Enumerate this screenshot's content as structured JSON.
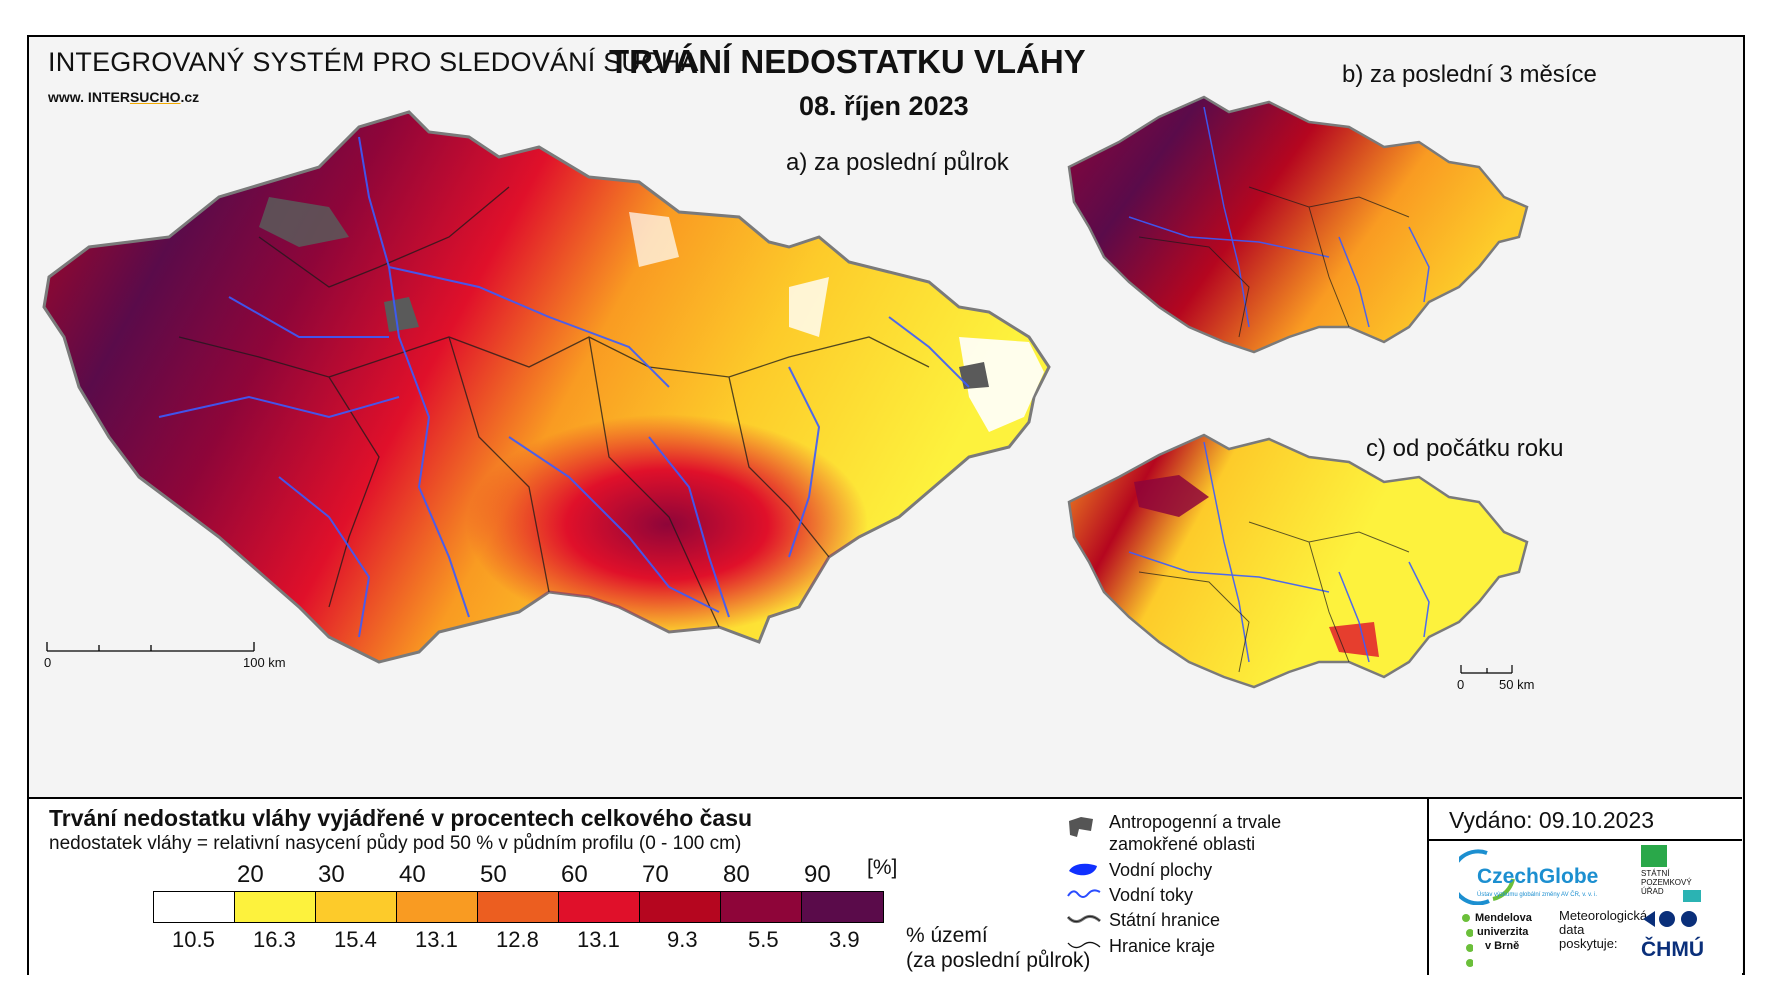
{
  "header": {
    "system_title": "INTEGROVANÝ SYSTÉM PRO SLEDOVÁNÍ SUCHA",
    "website_prefix": "www. INTER",
    "website_brand": "SUCHO",
    "website_suffix": ".cz",
    "title": "TRVÁNÍ NEDOSTATKU VLÁHY",
    "date": "08. říjen 2023"
  },
  "maps": {
    "a_label": "a) za poslední půlrok",
    "b_label": "b) za poslední 3 měsíce",
    "c_label": "c) od počátku roku"
  },
  "scale_main": {
    "start": "0",
    "end": "100 km"
  },
  "scale_small": {
    "start": "0",
    "end": "50 km"
  },
  "legend": {
    "title": "Trvání nedostatku vláhy vyjádřené v procentech celkového času",
    "subtitle": "nedostatek vláhy = relativní nasycení půdy pod 50 % v půdním profilu (0 - 100 cm)",
    "unit": "[%]",
    "thresholds": [
      "20",
      "30",
      "40",
      "50",
      "60",
      "70",
      "80",
      "90"
    ],
    "colors": [
      "#ffffff",
      "#fdf23d",
      "#fdcb2a",
      "#f99b22",
      "#ec5e20",
      "#e0102a",
      "#b5061f",
      "#8e0539",
      "#5a0b4a"
    ],
    "area_percentages": [
      "10.5",
      "16.3",
      "15.4",
      "13.1",
      "12.8",
      "13.1",
      "9.3",
      "5.5",
      "3.9"
    ],
    "area_label_line1": "% území",
    "area_label_line2": "(za poslední půlrok)"
  },
  "symbols": {
    "anthropogenic": "Antropogenní a trvale zamokřené oblasti",
    "anthropogenic_line1": "Antropogenní a trvale",
    "anthropogenic_line2": "zamokřené oblasti",
    "water_bodies": "Vodní plochy",
    "rivers": "Vodní toky",
    "state_border": "Státní hranice",
    "region_border": "Hranice kraje"
  },
  "issued": "Vydáno: 09.10.2023",
  "logos": {
    "czechglobe": "CzechGlobe",
    "czechglobe_sub": "Ústav výzkumu globální změny AV ČR, v. v. i.",
    "spu_line1": "STÁTNÍ",
    "spu_line2": "POZEMKOVÝ",
    "spu_line3": "ÚŘAD",
    "mendel_line1": "Mendelova",
    "mendel_line2": "univerzita",
    "mendel_line3": "v Brně",
    "meteo_line1": "Meteorologická",
    "meteo_line2": "data",
    "meteo_line3": "poskytuje:",
    "chmu": "ČHMÚ"
  }
}
